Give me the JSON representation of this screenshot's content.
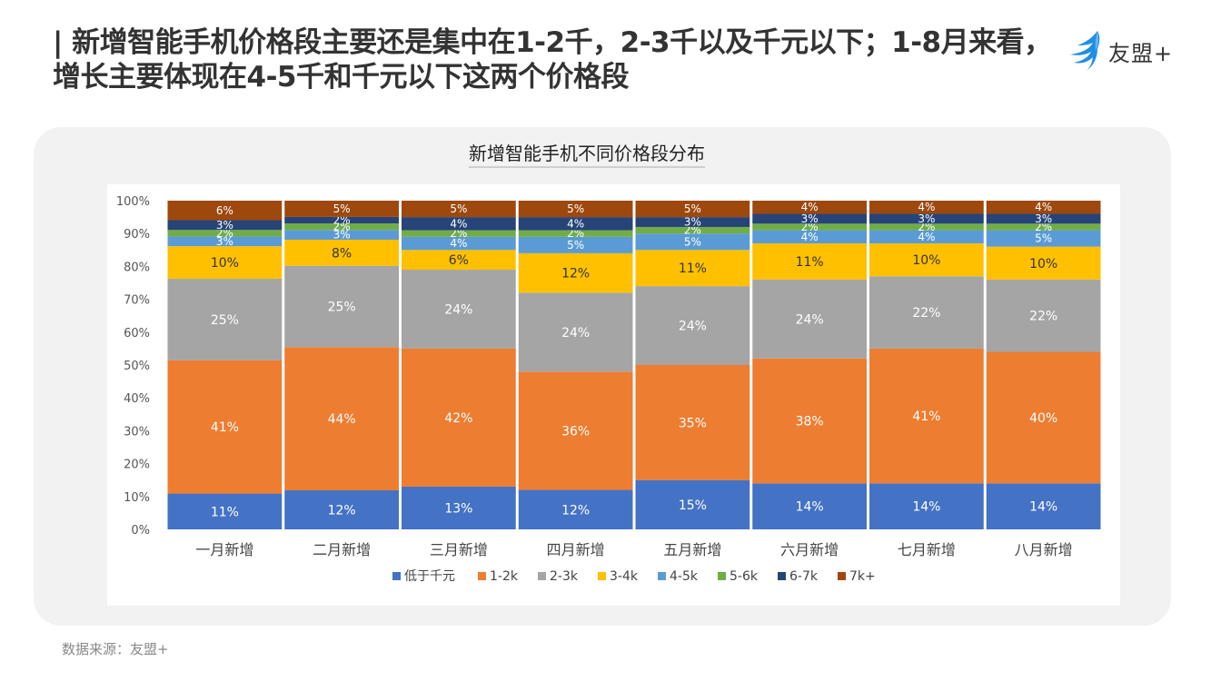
{
  "headline": "| 新增智能手机价格段主要还是集中在1-2千，2-3千以及千元以下；1-8月来看，增长主要体现在4-5千和千元以下这两个价格段",
  "brand": {
    "name": "友盟+",
    "icon": "umeng-bird-icon",
    "color": "#1e8ee6"
  },
  "source": "数据来源：友盟+",
  "chart_data": {
    "type": "bar",
    "stacked": "percent",
    "title": "新增智能手机不同价格段分布",
    "categories": [
      "一月新增",
      "二月新增",
      "三月新增",
      "四月新增",
      "五月新增",
      "六月新增",
      "七月新增",
      "八月新增"
    ],
    "ylim": [
      0,
      100
    ],
    "yticks": [
      "0%",
      "10%",
      "20%",
      "30%",
      "40%",
      "50%",
      "60%",
      "70%",
      "80%",
      "90%",
      "100%"
    ],
    "legend_position": "bottom",
    "grid": false,
    "series": [
      {
        "name": "低于千元",
        "color": "#4472c4",
        "values": [
          11,
          12,
          13,
          12,
          15,
          14,
          14,
          14
        ],
        "labels": [
          "11%",
          "12%",
          "13%",
          "12%",
          "15%",
          "14%",
          "14%",
          "14%"
        ]
      },
      {
        "name": "1-2k",
        "color": "#ed7d31",
        "values": [
          41,
          44,
          42,
          36,
          35,
          38,
          41,
          40
        ],
        "labels": [
          "41%",
          "44%",
          "42%",
          "36%",
          "35%",
          "38%",
          "41%",
          "40%"
        ]
      },
      {
        "name": "2-3k",
        "color": "#a5a5a5",
        "values": [
          25,
          25,
          24,
          24,
          24,
          24,
          22,
          22
        ],
        "labels": [
          "25%",
          "25%",
          "24%",
          "24%",
          "24%",
          "24%",
          "22%",
          "22%"
        ]
      },
      {
        "name": "3-4k",
        "color": "#ffc000",
        "values": [
          10,
          8,
          6,
          12,
          11,
          11,
          10,
          10
        ],
        "labels": [
          "10%",
          "8%",
          "6%",
          "12%",
          "11%",
          "11%",
          "10%",
          "10%"
        ]
      },
      {
        "name": "4-5k",
        "color": "#5b9bd5",
        "values": [
          3,
          3,
          4,
          5,
          5,
          4,
          4,
          5
        ],
        "labels": [
          "3%",
          "3%",
          "4%",
          "5%",
          "5%",
          "4%",
          "4%",
          "5%"
        ]
      },
      {
        "name": "5-6k",
        "color": "#70ad47",
        "values": [
          2,
          2,
          2,
          2,
          2,
          2,
          2,
          2
        ],
        "labels": [
          "2%",
          "2%",
          "2%",
          "2%",
          "2%",
          "2%",
          "2%",
          "2%"
        ]
      },
      {
        "name": "6-7k",
        "color": "#264478",
        "values": [
          3,
          2,
          4,
          4,
          3,
          3,
          3,
          3
        ],
        "labels": [
          "3%",
          "2%",
          "4%",
          "4%",
          "3%",
          "3%",
          "3%",
          "3%"
        ]
      },
      {
        "name": "7k+",
        "color": "#9e480e",
        "values": [
          6,
          5,
          5,
          5,
          5,
          4,
          4,
          4
        ],
        "labels": [
          "6%",
          "5%",
          "5%",
          "5%",
          "5%",
          "4%",
          "4%",
          "4%"
        ]
      }
    ]
  }
}
